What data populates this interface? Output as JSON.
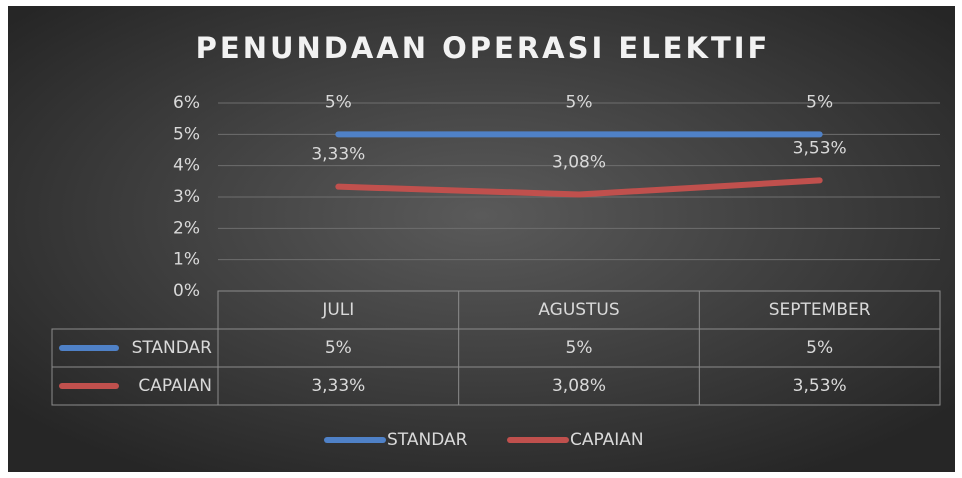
{
  "chart_data": {
    "type": "line",
    "title": "PENUNDAAN OPERASI ELEKTIF",
    "categories": [
      "JULI",
      "AGUSTUS",
      "SEPTEMBER"
    ],
    "series": [
      {
        "name": "STANDAR",
        "color": "#4f81c7",
        "values": [
          5,
          5,
          5
        ],
        "value_labels": [
          "5%",
          "5%",
          "5%"
        ]
      },
      {
        "name": "CAPAIAN",
        "color": "#c0504d",
        "values": [
          3.33,
          3.08,
          3.53
        ],
        "value_labels": [
          "3,33%",
          "3,08%",
          "3,53%"
        ]
      }
    ],
    "ylim": [
      0,
      6
    ],
    "yticks": [
      {
        "value": 0,
        "label": "0%"
      },
      {
        "value": 1,
        "label": "1%"
      },
      {
        "value": 2,
        "label": "2%"
      },
      {
        "value": 3,
        "label": "3%"
      },
      {
        "value": 4,
        "label": "4%"
      },
      {
        "value": 5,
        "label": "5%"
      },
      {
        "value": 6,
        "label": "6%"
      }
    ],
    "grid": true,
    "legend": "bottom",
    "data_table": true
  }
}
